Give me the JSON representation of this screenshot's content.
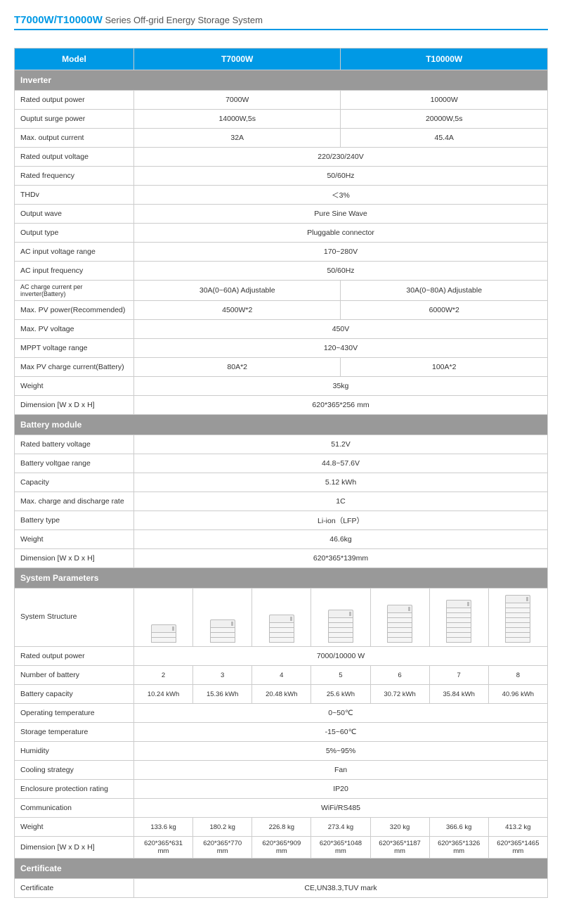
{
  "title": {
    "model": "T7000W/T10000W",
    "series": " Series Off-grid Energy Storage System"
  },
  "headers": {
    "model": "Model",
    "t7000": "T7000W",
    "t10000": "T10000W",
    "inverter": "Inverter",
    "battery": "Battery module",
    "system": "System Parameters",
    "certificate": "Certificate"
  },
  "inverter": [
    {
      "label": "Rated output power",
      "v1": "7000W",
      "v2": "10000W"
    },
    {
      "label": "Ouptut surge power",
      "v1": "14000W,5s",
      "v2": "20000W,5s"
    },
    {
      "label": "Max. output current",
      "v1": "32A",
      "v2": "45.4A"
    },
    {
      "label": "Rated output voltage",
      "span": "220/230/240V"
    },
    {
      "label": "Rated frequency",
      "span": "50/60Hz"
    },
    {
      "label": "THDv",
      "span": "＜3%"
    },
    {
      "label": "Output wave",
      "span": "Pure Sine Wave"
    },
    {
      "label": "Output type",
      "span": "Pluggable connector"
    },
    {
      "label": "AC input voltage range",
      "span": "170~280V"
    },
    {
      "label": "AC input frequency",
      "span": "50/60Hz"
    },
    {
      "label": "AC charge current per inverter(Battery)",
      "v1": "30A(0~60A) Adjustable",
      "v2": "30A(0~80A) Adjustable",
      "small": true
    },
    {
      "label": "Max. PV power(Recommended)",
      "v1": "4500W*2",
      "v2": "6000W*2"
    },
    {
      "label": "Max. PV voltage",
      "span": "450V"
    },
    {
      "label": "MPPT voltage range",
      "span": "120~430V"
    },
    {
      "label": "Max PV charge current(Battery)",
      "v1": "80A*2",
      "v2": "100A*2"
    },
    {
      "label": "Weight",
      "span": "35kg"
    },
    {
      "label": "Dimension [W x D x H]",
      "span": "620*365*256 mm"
    }
  ],
  "battery": [
    {
      "label": "Rated battery voltage",
      "span": "51.2V"
    },
    {
      "label": "Battery voltgae range",
      "span": "44.8~57.6V"
    },
    {
      "label": "Capacity",
      "span": "5.12 kWh"
    },
    {
      "label": "Max. charge and discharge rate",
      "span": "1C"
    },
    {
      "label": "Battery type",
      "span": "Li-ion（LFP）"
    },
    {
      "label": "Weight",
      "span": "46.6kg"
    },
    {
      "label": "Dimension [W x D x H]",
      "span": "620*365*139mm"
    }
  ],
  "system": {
    "structure_label": "System Structure",
    "modules": [
      2,
      3,
      4,
      5,
      6,
      7,
      8
    ],
    "rows": [
      {
        "label": "Rated output power",
        "span": "7000/10000 W"
      },
      {
        "label": "Number of battery",
        "vals": [
          "2",
          "3",
          "4",
          "5",
          "6",
          "7",
          "8"
        ]
      },
      {
        "label": "Battery capacity",
        "vals": [
          "10.24 kWh",
          "15.36 kWh",
          "20.48 kWh",
          "25.6 kWh",
          "30.72 kWh",
          "35.84 kWh",
          "40.96 kWh"
        ]
      },
      {
        "label": "Operating temperature",
        "span": "0~50℃"
      },
      {
        "label": "Storage temperature",
        "span": "-15~60℃"
      },
      {
        "label": "Humidity",
        "span": "5%~95%"
      },
      {
        "label": "Cooling strategy",
        "span": "Fan"
      },
      {
        "label": "Enclosure protection rating",
        "span": "IP20"
      },
      {
        "label": "Communication",
        "span": "WiFi/RS485"
      },
      {
        "label": "Weight",
        "vals": [
          "133.6 kg",
          "180.2 kg",
          "226.8  kg",
          "273.4  kg",
          "320 kg",
          "366.6 kg",
          "413.2 kg"
        ]
      },
      {
        "label": "Dimension [W x D x H]",
        "vals": [
          "620*365*631 mm",
          "620*365*770 mm",
          "620*365*909 mm",
          "620*365*1048 mm",
          "620*365*1187 mm",
          "620*365*1326 mm",
          "620*365*1465 mm"
        ]
      }
    ]
  },
  "certificate": {
    "label": "Certificate",
    "value": "CE,UN38.3,TUV mark"
  }
}
